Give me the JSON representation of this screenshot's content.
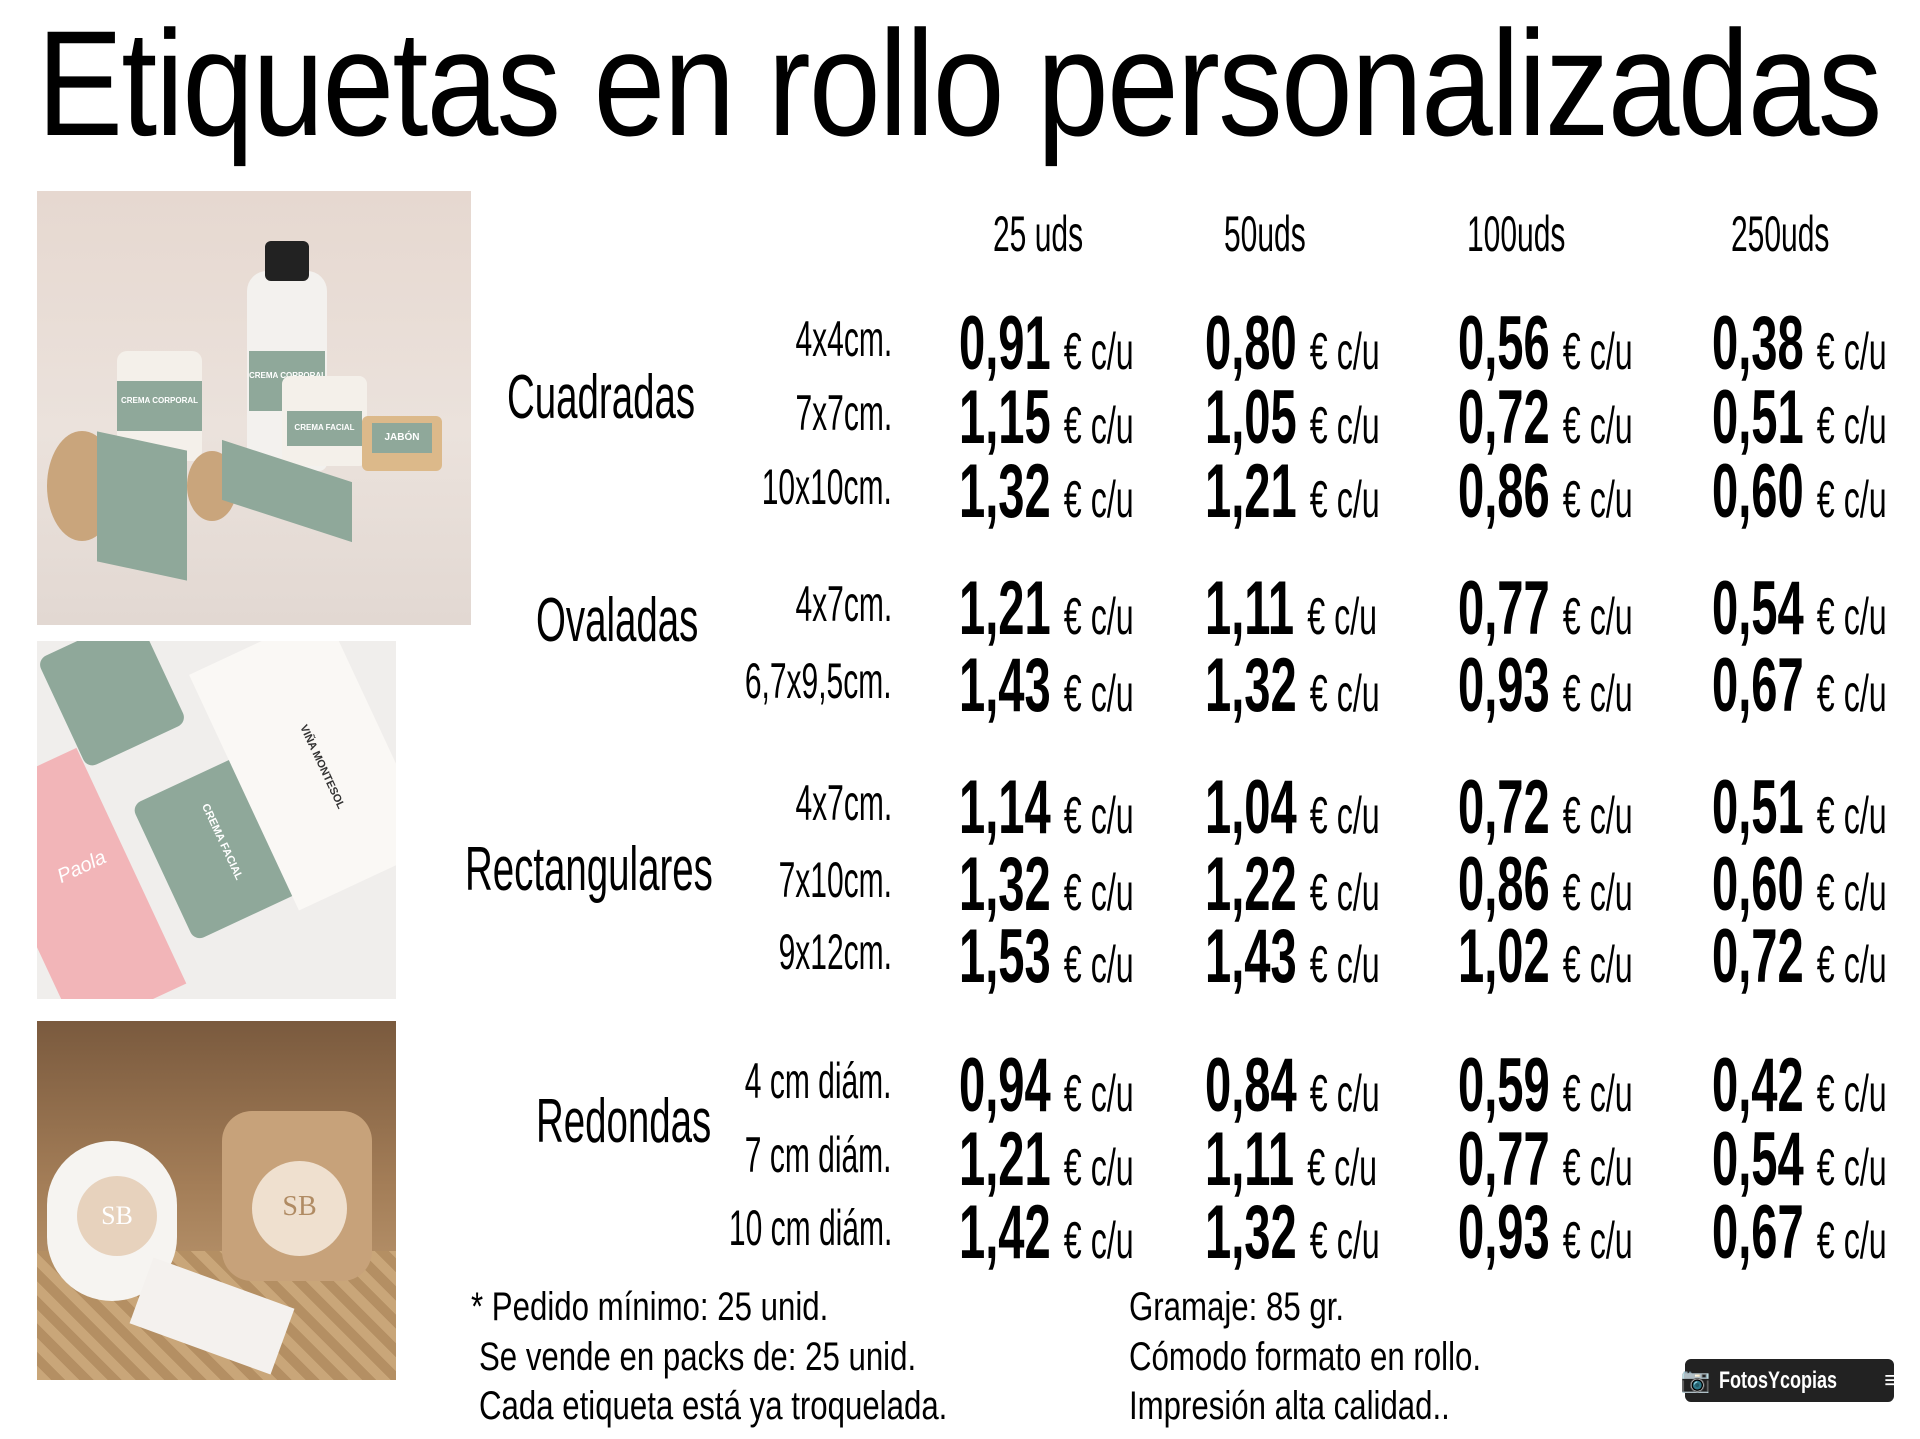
{
  "title": "Etiquetas en rollo personalizadas",
  "columns": [
    "25 uds",
    "50uds",
    "100uds",
    "250uds"
  ],
  "unit": "€ c/u",
  "categories": [
    {
      "name": "Cuadradas",
      "rows": [
        {
          "size": "4x4cm.",
          "prices": [
            "0,91",
            "0,80",
            "0,56",
            "0,38"
          ]
        },
        {
          "size": "7x7cm.",
          "prices": [
            "1,15",
            "1,05",
            "0,72",
            "0,51"
          ]
        },
        {
          "size": "10x10cm.",
          "prices": [
            "1,32",
            "1,21",
            "0,86",
            "0,60"
          ]
        }
      ]
    },
    {
      "name": "Ovaladas",
      "rows": [
        {
          "size": "4x7cm.",
          "prices": [
            "1,21",
            "1,11",
            "0,77",
            "0,54"
          ]
        },
        {
          "size": "6,7x9,5cm.",
          "prices": [
            "1,43",
            "1,32",
            "0,93",
            "0,67"
          ]
        }
      ]
    },
    {
      "name": "Rectangulares",
      "rows": [
        {
          "size": "4x7cm.",
          "prices": [
            "1,14",
            "1,04",
            "0,72",
            "0,51"
          ]
        },
        {
          "size": "7x10cm.",
          "prices": [
            "1,32",
            "1,22",
            "0,86",
            "0,60"
          ]
        },
        {
          "size": "9x12cm.",
          "prices": [
            "1,53",
            "1,43",
            "1,02",
            "0,72"
          ]
        }
      ]
    },
    {
      "name": "Redondas",
      "rows": [
        {
          "size": "4 cm diám.",
          "prices": [
            "0,94",
            "0,84",
            "0,59",
            "0,42"
          ]
        },
        {
          "size": "7 cm  diám.",
          "prices": [
            "1,21",
            "1,11",
            "0,77",
            "0,54"
          ]
        },
        {
          "size": "10 cm diám.",
          "prices": [
            "1,42",
            "1,32",
            "0,93",
            "0,67"
          ]
        }
      ]
    }
  ],
  "footer": {
    "left": [
      "* Pedido mínimo: 25 unid.",
      "Se vende en packs de: 25 unid.",
      "Cada etiqueta está ya troquelada."
    ],
    "right": [
      "Gramaje: 85 gr.",
      "Cómodo formato en rollo.",
      "Impresión alta calidad.."
    ]
  },
  "photos": {
    "square_labels": [
      "CREMA CORPORAL",
      "CREMA FACIAL",
      "JABÓN"
    ],
    "rect_labels": [
      "CREMA FACIAL",
      "VIÑA MONTESOL",
      "Paola"
    ],
    "round_labels": [
      "SB"
    ]
  },
  "logo": {
    "text": "FotosYcopias",
    "icon": "camera-icon"
  },
  "colors": {
    "label_green": "#8fa89a",
    "label_pink": "#f2b5b8",
    "kraft": "#c9a57c",
    "text": "#000000"
  }
}
